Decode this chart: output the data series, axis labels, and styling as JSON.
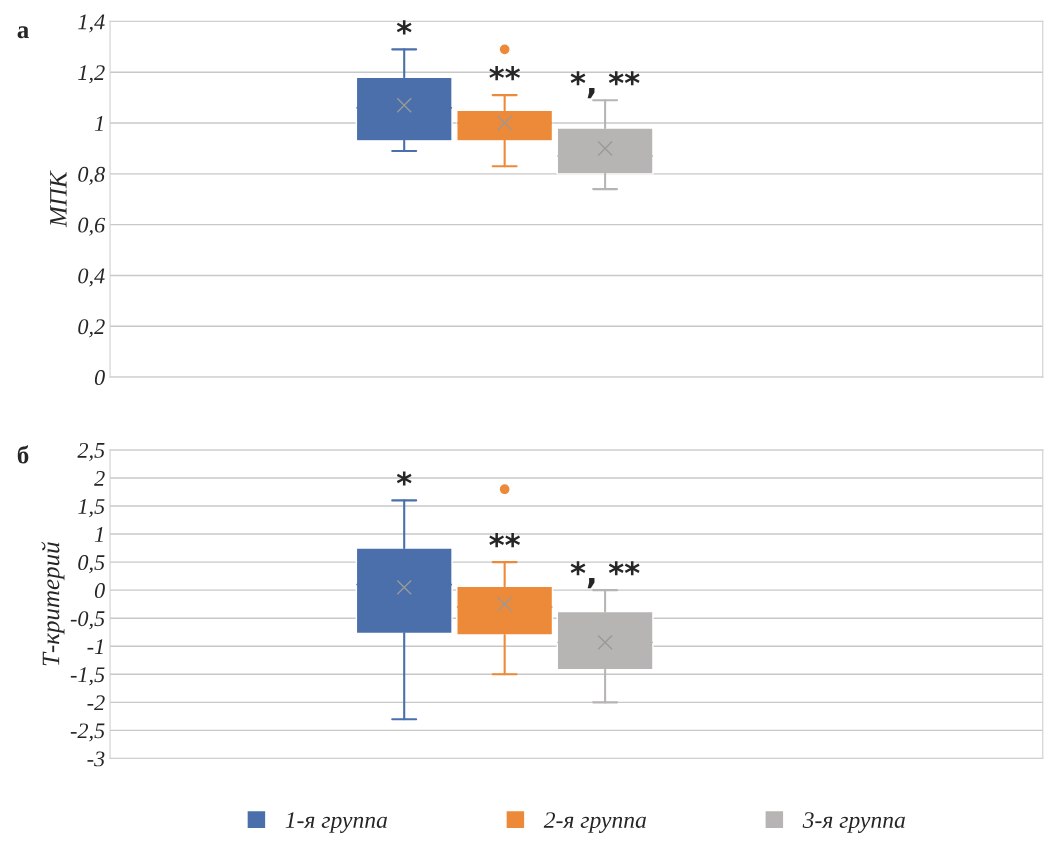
{
  "chart_data": [
    {
      "type": "box",
      "title": "а",
      "ylabel": "МПК",
      "categories": [
        null
      ],
      "ylim": [
        0,
        1.4
      ],
      "yticks": [
        0,
        {
          "value": 0.2,
          "label": "0,2"
        },
        {
          "value": 0.4,
          "label": "0,4"
        },
        {
          "value": 0.6,
          "label": "0,6"
        },
        {
          "value": 0.8,
          "label": "0,8"
        },
        1,
        {
          "value": 1.2,
          "label": "1,2"
        },
        {
          "value": 1.4,
          "label": "1,4"
        }
      ],
      "grid": "y",
      "tick_labels": "y",
      "series": [
        {
          "color": "#4a6fab",
          "boxes": [
            {
              "low": 0.89,
              "q1": 0.93,
              "median": 1.06,
              "q3": 1.18,
              "high": 1.29,
              "mean": 1.07
            }
          ]
        },
        {
          "color": "#ec8a3a",
          "boxes": [
            {
              "low": 0.83,
              "q1": 0.93,
              "median": 1.0,
              "q3": 1.05,
              "high": 1.11,
              "mean": 1.0,
              "outliers": [
                1.29
              ]
            }
          ]
        },
        {
          "color": "#b7b5b3",
          "boxes": [
            {
              "low": 0.74,
              "q1": 0.8,
              "median": 0.87,
              "q3": 0.98,
              "high": 1.09,
              "mean": 0.9
            }
          ]
        }
      ],
      "annotations": [
        "*",
        "**",
        "*, **"
      ]
    },
    {
      "type": "box",
      "title": "б",
      "ylabel": "Т-критерий",
      "categories": [
        null
      ],
      "ylim": [
        -3,
        2.5
      ],
      "yticks": [
        {
          "value": -3,
          "label": "-3"
        },
        {
          "value": -2.5,
          "label": "-2,5"
        },
        {
          "value": -2,
          "label": "-2"
        },
        {
          "value": -1.5,
          "label": "-1,5"
        },
        {
          "value": -1,
          "label": "-1"
        },
        {
          "value": -0.5,
          "label": "-0,5"
        },
        0,
        {
          "value": 0.5,
          "label": "0,5"
        },
        1,
        {
          "value": 1.5,
          "label": "1,5"
        },
        2,
        {
          "value": 2.5,
          "label": "2,5"
        }
      ],
      "grid": "y",
      "legend": "bottom",
      "tick_labels": "y",
      "series": [
        {
          "name": "1-я группа",
          "color": "#4a6fab",
          "boxes": [
            {
              "low": -2.3,
              "q1": -0.77,
              "median": 0.1,
              "q3": 0.75,
              "high": 1.6,
              "mean": 0.05
            }
          ]
        },
        {
          "name": "2-я группа",
          "color": "#ec8a3a",
          "boxes": [
            {
              "low": -1.5,
              "q1": -0.8,
              "median": -0.3,
              "q3": 0.07,
              "high": 0.5,
              "mean": -0.25,
              "outliers": [
                1.8
              ]
            }
          ]
        },
        {
          "name": "3-я группа",
          "color": "#b7b5b3",
          "boxes": [
            {
              "low": -2.0,
              "q1": -1.42,
              "median": -0.93,
              "q3": -0.38,
              "high": 0.0,
              "mean": -0.93
            }
          ]
        }
      ],
      "annotations": [
        "*",
        "**",
        "*, **"
      ]
    }
  ]
}
